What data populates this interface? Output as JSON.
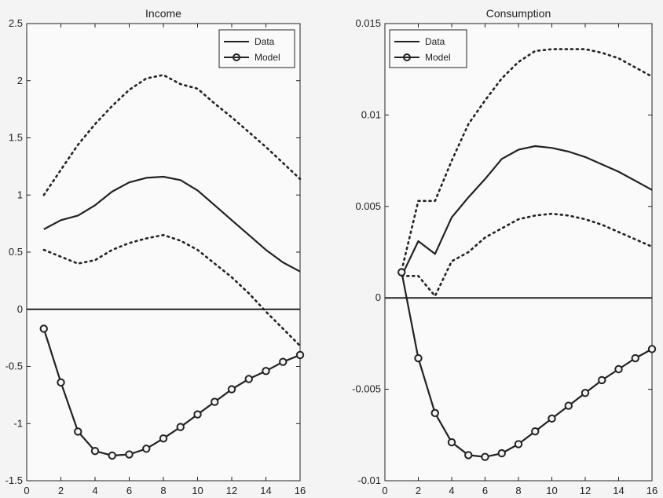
{
  "chart_data": [
    {
      "type": "line",
      "title": "Income",
      "xlim": [
        0,
        16
      ],
      "ylim": [
        -1.5,
        2.5
      ],
      "x_ticks": [
        0,
        2,
        4,
        6,
        8,
        10,
        12,
        14,
        16
      ],
      "x_tick_labels": [
        "0",
        "2",
        "4",
        "6",
        "8",
        "10",
        "12",
        "14",
        "16"
      ],
      "y_ticks": [
        -1.5,
        -1,
        -0.5,
        0,
        0.5,
        1,
        1.5,
        2,
        2.5
      ],
      "y_tick_labels": [
        "-1.5",
        "-1",
        "-0.5",
        "0",
        "0.5",
        "1",
        "1.5",
        "2",
        "2.5"
      ],
      "legend": {
        "position": "top-right",
        "entries": [
          "Data",
          "Model"
        ]
      },
      "x": [
        1,
        2,
        3,
        4,
        5,
        6,
        7,
        8,
        9,
        10,
        11,
        12,
        13,
        14,
        15,
        16
      ],
      "series": [
        {
          "name": "Data",
          "style": "solid",
          "values": [
            0.7,
            0.78,
            0.82,
            0.91,
            1.03,
            1.11,
            1.15,
            1.16,
            1.13,
            1.04,
            0.91,
            0.78,
            0.65,
            0.52,
            0.41,
            0.33
          ]
        },
        {
          "name": "",
          "style": "dotted",
          "values": [
            1.0,
            1.22,
            1.44,
            1.62,
            1.78,
            1.92,
            2.02,
            2.05,
            1.97,
            1.93,
            1.8,
            1.68,
            1.55,
            1.42,
            1.28,
            1.14
          ]
        },
        {
          "name": "",
          "style": "dotted",
          "values": [
            0.52,
            0.46,
            0.4,
            0.43,
            0.52,
            0.58,
            0.62,
            0.65,
            0.6,
            0.52,
            0.4,
            0.28,
            0.14,
            -0.02,
            -0.17,
            -0.32
          ]
        },
        {
          "name": "Model",
          "style": "line-circle",
          "values": [
            -0.17,
            -0.64,
            -1.07,
            -1.24,
            -1.28,
            -1.27,
            -1.22,
            -1.13,
            -1.03,
            -0.92,
            -0.81,
            -0.7,
            -0.61,
            -0.54,
            -0.46,
            -0.4
          ]
        }
      ]
    },
    {
      "type": "line",
      "title": "Consumption",
      "xlim": [
        0,
        16
      ],
      "ylim": [
        -0.01,
        0.015
      ],
      "x_ticks": [
        0,
        2,
        4,
        6,
        8,
        10,
        12,
        14,
        16
      ],
      "x_tick_labels": [
        "0",
        "2",
        "4",
        "6",
        "8",
        "10",
        "12",
        "14",
        "16"
      ],
      "y_ticks": [
        -0.01,
        -0.005,
        0,
        0.005,
        0.01,
        0.015
      ],
      "y_tick_labels": [
        "-0.01",
        "-0.005",
        "0",
        "0.005",
        "0.01",
        "0.015"
      ],
      "legend": {
        "position": "top-left",
        "entries": [
          "Data",
          "Model"
        ]
      },
      "x": [
        1,
        2,
        3,
        4,
        5,
        6,
        7,
        8,
        9,
        10,
        11,
        12,
        13,
        14,
        15,
        16
      ],
      "series": [
        {
          "name": "Data",
          "style": "solid",
          "values": [
            0.0012,
            0.0031,
            0.0024,
            0.0044,
            0.0055,
            0.0065,
            0.0076,
            0.0081,
            0.0083,
            0.0082,
            0.008,
            0.0077,
            0.0073,
            0.0069,
            0.0064,
            0.0059
          ]
        },
        {
          "name": "",
          "style": "dotted",
          "values": [
            0.0015,
            0.0053,
            0.0053,
            0.0075,
            0.0095,
            0.0108,
            0.012,
            0.0129,
            0.0135,
            0.0136,
            0.0136,
            0.0136,
            0.0134,
            0.0131,
            0.0126,
            0.0121
          ]
        },
        {
          "name": "",
          "style": "dotted",
          "values": [
            0.0012,
            0.0012,
            0.0001,
            0.002,
            0.0025,
            0.0033,
            0.0038,
            0.0043,
            0.0045,
            0.0046,
            0.0045,
            0.0043,
            0.004,
            0.0036,
            0.0032,
            0.0028
          ]
        },
        {
          "name": "Model",
          "style": "line-circle",
          "values": [
            0.0014,
            -0.0033,
            -0.0063,
            -0.0079,
            -0.0086,
            -0.0087,
            -0.0085,
            -0.008,
            -0.0073,
            -0.0066,
            -0.0059,
            -0.0052,
            -0.0045,
            -0.0039,
            -0.0033,
            -0.0028
          ]
        }
      ]
    }
  ]
}
